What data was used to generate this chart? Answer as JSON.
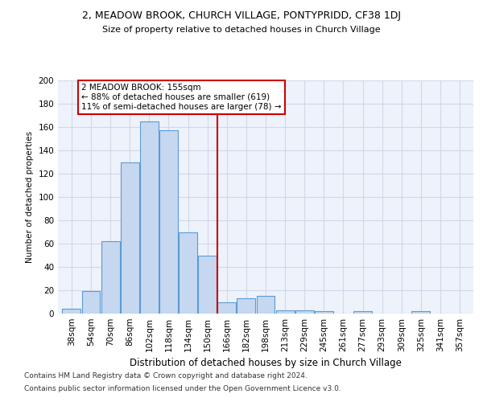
{
  "title1": "2, MEADOW BROOK, CHURCH VILLAGE, PONTYPRIDD, CF38 1DJ",
  "title2": "Size of property relative to detached houses in Church Village",
  "xlabel": "Distribution of detached houses by size in Church Village",
  "ylabel": "Number of detached properties",
  "footnote1": "Contains HM Land Registry data © Crown copyright and database right 2024.",
  "footnote2": "Contains public sector information licensed under the Open Government Licence v3.0.",
  "bin_labels": [
    "38sqm",
    "54sqm",
    "70sqm",
    "86sqm",
    "102sqm",
    "118sqm",
    "134sqm",
    "150sqm",
    "166sqm",
    "182sqm",
    "198sqm",
    "213sqm",
    "229sqm",
    "245sqm",
    "261sqm",
    "277sqm",
    "293sqm",
    "309sqm",
    "325sqm",
    "341sqm",
    "357sqm"
  ],
  "bar_values": [
    4,
    19,
    62,
    130,
    165,
    157,
    70,
    50,
    10,
    13,
    15,
    3,
    3,
    2,
    0,
    2,
    0,
    0,
    2,
    0,
    0
  ],
  "bar_color": "#c5d8f0",
  "bar_edge_color": "#5b9bd5",
  "grid_color": "#d0d8e8",
  "background_color": "#eef2fa",
  "vline_x": 7.5,
  "vline_color": "#cc0000",
  "annotation_text": "2 MEADOW BROOK: 155sqm\n← 88% of detached houses are smaller (619)\n11% of semi-detached houses are larger (78) →",
  "annotation_box_color": "#ffffff",
  "annotation_box_edge_color": "#cc0000",
  "ylim": [
    0,
    200
  ],
  "yticks": [
    0,
    20,
    40,
    60,
    80,
    100,
    120,
    140,
    160,
    180,
    200
  ]
}
